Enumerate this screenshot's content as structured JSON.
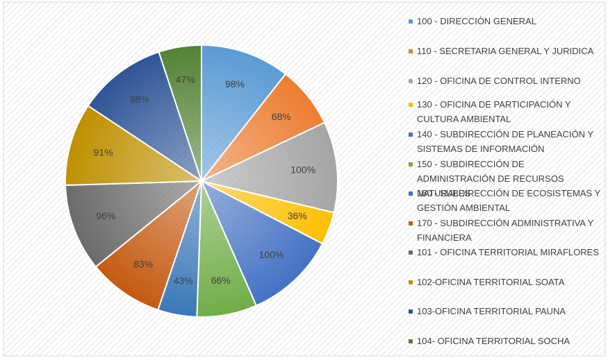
{
  "chart_data": {
    "type": "pie",
    "categories": [
      "100 - DIRECCIÓN GENERAL",
      "110 - SECRETARIA GENERAL Y JURIDICA",
      "120 - OFICINA DE CONTROL INTERNO",
      "130 - OFICINA DE PARTICIPACIÓN Y CULTURA AMBIENTAL",
      "140 - SUBDIRECCIÓN DE PLANEACIÓN Y SISTEMAS DE INFORMACIÓN",
      "150 - SUBDIRECCIÓN DE ADMINISTRACIÓN DE RECURSOS NATURALES",
      "160 - SUBDIRECCIÓN DE ECOSISTEMAS Y GESTIÓN AMBIENTAL",
      "170 - SUBDIRECCIÓN ADMINISTRATIVA Y FINANCIERA",
      "101 - OFICINA TERRITORIAL MIRAFLORES",
      "102-OFICINA TERRITORIAL SOATA",
      "103-OFICINA TERRITORIAL PAUNA",
      "104- OFICINA TERRITORIAL SOCHA"
    ],
    "values": [
      98,
      68,
      100,
      36,
      100,
      66,
      43,
      83,
      96,
      91,
      98,
      47
    ],
    "value_labels": [
      "98%",
      "68%",
      "100%",
      "36%",
      "100%",
      "66%",
      "43%",
      "83%",
      "96%",
      "91%",
      "98%",
      "47%"
    ],
    "colors": [
      "#5b9bd5",
      "#ed7d31",
      "#a5a5a5",
      "#ffc000",
      "#4472c4",
      "#70ad47",
      "#3a78b8",
      "#c55a11",
      "#6b6b6b",
      "#bf9000",
      "#2f5597",
      "#548235"
    ],
    "legend": "right"
  }
}
